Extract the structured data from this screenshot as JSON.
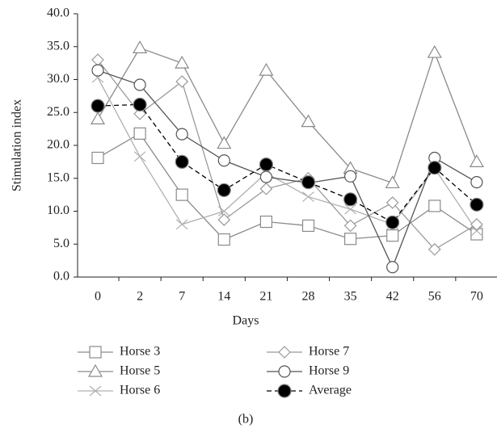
{
  "chart_data": {
    "type": "line",
    "caption": "(b)",
    "x_label": "Days",
    "y_label": "Stimulation index",
    "categories": [
      "0",
      "2",
      "7",
      "14",
      "21",
      "28",
      "35",
      "42",
      "56",
      "70"
    ],
    "ylim": [
      0,
      40
    ],
    "yticks": [
      {
        "value": 0,
        "label": "0.0"
      },
      {
        "value": 5,
        "label": "5.0"
      },
      {
        "value": 10,
        "label": "10.0"
      },
      {
        "value": 15,
        "label": "15.0"
      },
      {
        "value": 20,
        "label": "20.0"
      },
      {
        "value": 25,
        "label": "25.0"
      },
      {
        "value": 30,
        "label": "30.0"
      },
      {
        "value": 35,
        "label": "35.0"
      },
      {
        "value": 40,
        "label": "40.0"
      }
    ],
    "series": [
      {
        "name": "Horse 3",
        "color": "#8a8a8a",
        "marker": "square",
        "values": [
          18.1,
          21.8,
          12.5,
          5.7,
          8.4,
          7.8,
          5.8,
          6.3,
          10.8,
          6.5
        ]
      },
      {
        "name": "Horse 5",
        "color": "#8a8a8a",
        "marker": "triangle",
        "values": [
          24.0,
          34.8,
          32.5,
          20.3,
          31.4,
          23.6,
          16.5,
          14.3,
          34.1,
          17.5
        ]
      },
      {
        "name": "Horse 6",
        "color": "#b0b0b0",
        "marker": "x",
        "values": [
          30.3,
          18.3,
          8.0,
          10.0,
          15.8,
          12.2,
          10.3,
          8.0,
          16.5,
          7.0
        ]
      },
      {
        "name": "Horse 7",
        "color": "#9a9a9a",
        "marker": "diamond",
        "values": [
          33.0,
          24.8,
          29.7,
          8.7,
          13.4,
          15.0,
          7.8,
          11.3,
          4.2,
          8.0
        ]
      },
      {
        "name": "Horse 9",
        "color": "#555555",
        "marker": "circle",
        "values": [
          31.4,
          29.2,
          21.7,
          17.7,
          15.2,
          14.3,
          15.3,
          1.5,
          18.1,
          14.4
        ]
      },
      {
        "name": "Average",
        "color": "#000000",
        "marker": "dot",
        "dashed": true,
        "values": [
          26.0,
          26.2,
          17.5,
          13.2,
          17.1,
          14.4,
          11.8,
          8.3,
          16.6,
          11.0
        ]
      }
    ]
  }
}
